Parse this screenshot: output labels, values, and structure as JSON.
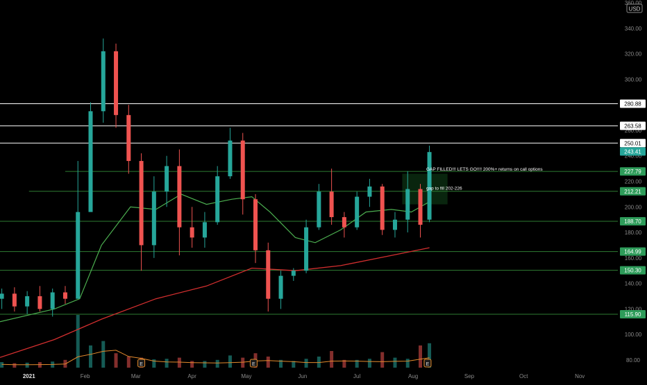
{
  "currency": "USD",
  "colors": {
    "background": "#000000",
    "up": "#26a69a",
    "down": "#ef5350",
    "level_line_green": "#2e7d32",
    "level_line_white": "#ffffff",
    "label_green": "#2e9c5a",
    "label_white": "#ffffff",
    "ma_short": "#4caf50",
    "ma_long": "#d32f2f",
    "volume_ma": "#e38a2c",
    "axis_text": "#8a8a8a",
    "gap_zone": "#0f3d17"
  },
  "annotations": [
    {
      "text": "GAP FILLED!!! LETS GO!!!! 200%+ returns on call options",
      "date": "2021-08-09",
      "price": 230
    },
    {
      "text": "gap to fill 202-226",
      "date": "2021-08-09",
      "price": 215
    }
  ],
  "chart_data": {
    "type": "candlestick",
    "y_axis": {
      "ticks": [
        80,
        100,
        120,
        140,
        160,
        180,
        200,
        220,
        240,
        260,
        280,
        300,
        320,
        340,
        360
      ],
      "labels": [
        "80.00",
        "100.00",
        "120.00",
        "140.00",
        "160.00",
        "180.00",
        "200.00",
        "220.00",
        "240.00",
        "260.00",
        "280.00",
        "300.00",
        "320.00",
        "340.00",
        "360.00"
      ],
      "range": [
        74,
        360
      ]
    },
    "x_axis": {
      "labels": [
        {
          "date": "2021-01-01",
          "text": "2021",
          "bold": true
        },
        {
          "date": "2021-02-01",
          "text": "Feb"
        },
        {
          "date": "2021-03-01",
          "text": "Mar"
        },
        {
          "date": "2021-04-01",
          "text": "Apr"
        },
        {
          "date": "2021-05-01",
          "text": "May"
        },
        {
          "date": "2021-06-01",
          "text": "Jun"
        },
        {
          "date": "2021-07-01",
          "text": "Jul"
        },
        {
          "date": "2021-08-01",
          "text": "Aug"
        },
        {
          "date": "2021-09-01",
          "text": "Sep"
        },
        {
          "date": "2021-10-01",
          "text": "Oct"
        },
        {
          "date": "2021-11-01",
          "text": "Nov"
        }
      ],
      "range": [
        "2020-12-16",
        "2021-11-22"
      ]
    },
    "levels": [
      {
        "price": 280.88,
        "label": "280.88",
        "style": "white",
        "from": "2020-12-16"
      },
      {
        "price": 263.58,
        "label": "263.58",
        "style": "white",
        "from": "2020-12-16"
      },
      {
        "price": 250.01,
        "label": "250.01",
        "style": "white",
        "from": "2020-12-16"
      },
      {
        "price": 227.79,
        "label": "227.79",
        "style": "green",
        "from": "2021-01-21"
      },
      {
        "price": 212.21,
        "label": "212.21",
        "style": "green",
        "from": "2021-01-01"
      },
      {
        "price": 188.7,
        "label": "188.70",
        "style": "green",
        "from": "2020-12-16"
      },
      {
        "price": 164.99,
        "label": "164.99",
        "style": "green",
        "from": "2020-12-16"
      },
      {
        "price": 150.3,
        "label": "150.30",
        "style": "green",
        "from": "2020-12-16"
      },
      {
        "price": 115.9,
        "label": "115.90",
        "style": "green",
        "from": "2020-12-16"
      }
    ],
    "current_price": {
      "value": 243.41,
      "label": "243.41"
    },
    "gap_zone": {
      "low": 202,
      "high": 226,
      "from": "2021-07-26",
      "to": "2021-08-20"
    },
    "candles_weekly": [
      {
        "date": "2020-12-17",
        "o": 128,
        "h": 136,
        "l": 120,
        "c": 132
      },
      {
        "date": "2020-12-24",
        "o": 132,
        "h": 137,
        "l": 118,
        "c": 122
      },
      {
        "date": "2020-12-31",
        "o": 122,
        "h": 134,
        "l": 116,
        "c": 130
      },
      {
        "date": "2021-01-07",
        "o": 130,
        "h": 138,
        "l": 118,
        "c": 120
      },
      {
        "date": "2021-01-14",
        "o": 120,
        "h": 136,
        "l": 114,
        "c": 133
      },
      {
        "date": "2021-01-21",
        "o": 133,
        "h": 138,
        "l": 124,
        "c": 128
      },
      {
        "date": "2021-01-28",
        "o": 128,
        "h": 236,
        "l": 170,
        "c": 196
      },
      {
        "date": "2021-02-04",
        "o": 196,
        "h": 282,
        "l": 240,
        "c": 275
      },
      {
        "date": "2021-02-11",
        "o": 275,
        "h": 332,
        "l": 266,
        "c": 322
      },
      {
        "date": "2021-02-18",
        "o": 322,
        "h": 328,
        "l": 262,
        "c": 272
      },
      {
        "date": "2021-02-25",
        "o": 272,
        "h": 280,
        "l": 226,
        "c": 236
      },
      {
        "date": "2021-03-04",
        "o": 236,
        "h": 242,
        "l": 150,
        "c": 170
      },
      {
        "date": "2021-03-11",
        "o": 170,
        "h": 224,
        "l": 160,
        "c": 212
      },
      {
        "date": "2021-03-18",
        "o": 212,
        "h": 240,
        "l": 200,
        "c": 232
      },
      {
        "date": "2021-03-25",
        "o": 232,
        "h": 245,
        "l": 162,
        "c": 184
      },
      {
        "date": "2021-04-01",
        "o": 184,
        "h": 200,
        "l": 168,
        "c": 176
      },
      {
        "date": "2021-04-08",
        "o": 176,
        "h": 196,
        "l": 168,
        "c": 188
      },
      {
        "date": "2021-04-15",
        "o": 188,
        "h": 232,
        "l": 186,
        "c": 224
      },
      {
        "date": "2021-04-22",
        "o": 224,
        "h": 262,
        "l": 222,
        "c": 252
      },
      {
        "date": "2021-04-29",
        "o": 252,
        "h": 258,
        "l": 194,
        "c": 206
      },
      {
        "date": "2021-05-06",
        "o": 206,
        "h": 210,
        "l": 156,
        "c": 166
      },
      {
        "date": "2021-05-13",
        "o": 166,
        "h": 172,
        "l": 118,
        "c": 128
      },
      {
        "date": "2021-05-20",
        "o": 128,
        "h": 150,
        "l": 120,
        "c": 146
      },
      {
        "date": "2021-05-27",
        "o": 146,
        "h": 152,
        "l": 142,
        "c": 150
      },
      {
        "date": "2021-06-03",
        "o": 150,
        "h": 190,
        "l": 148,
        "c": 184
      },
      {
        "date": "2021-06-10",
        "o": 184,
        "h": 218,
        "l": 182,
        "c": 212
      },
      {
        "date": "2021-06-17",
        "o": 212,
        "h": 230,
        "l": 186,
        "c": 192
      },
      {
        "date": "2021-06-24",
        "o": 192,
        "h": 196,
        "l": 176,
        "c": 184
      },
      {
        "date": "2021-07-01",
        "o": 184,
        "h": 212,
        "l": 182,
        "c": 208
      },
      {
        "date": "2021-07-08",
        "o": 208,
        "h": 222,
        "l": 200,
        "c": 216
      },
      {
        "date": "2021-07-15",
        "o": 216,
        "h": 218,
        "l": 178,
        "c": 182
      },
      {
        "date": "2021-07-22",
        "o": 182,
        "h": 196,
        "l": 176,
        "c": 190
      },
      {
        "date": "2021-07-29",
        "o": 190,
        "h": 228,
        "l": 180,
        "c": 214
      },
      {
        "date": "2021-08-05",
        "o": 214,
        "h": 218,
        "l": 176,
        "c": 186
      },
      {
        "date": "2021-08-10",
        "o": 190,
        "h": 248,
        "l": 188,
        "c": 243
      }
    ],
    "ma_short": [
      {
        "date": "2020-12-16",
        "v": 110
      },
      {
        "date": "2021-01-15",
        "v": 120
      },
      {
        "date": "2021-01-29",
        "v": 128
      },
      {
        "date": "2021-02-10",
        "v": 170
      },
      {
        "date": "2021-02-26",
        "v": 200
      },
      {
        "date": "2021-03-12",
        "v": 198
      },
      {
        "date": "2021-03-26",
        "v": 210
      },
      {
        "date": "2021-04-09",
        "v": 202
      },
      {
        "date": "2021-04-23",
        "v": 206
      },
      {
        "date": "2021-05-04",
        "v": 208
      },
      {
        "date": "2021-05-14",
        "v": 196
      },
      {
        "date": "2021-05-28",
        "v": 176
      },
      {
        "date": "2021-06-08",
        "v": 172
      },
      {
        "date": "2021-06-22",
        "v": 182
      },
      {
        "date": "2021-07-06",
        "v": 196
      },
      {
        "date": "2021-07-20",
        "v": 198
      },
      {
        "date": "2021-07-31",
        "v": 196
      },
      {
        "date": "2021-08-10",
        "v": 204
      }
    ],
    "ma_long": [
      {
        "date": "2020-12-16",
        "v": 82
      },
      {
        "date": "2021-01-15",
        "v": 96
      },
      {
        "date": "2021-02-10",
        "v": 112
      },
      {
        "date": "2021-03-12",
        "v": 128
      },
      {
        "date": "2021-04-09",
        "v": 138
      },
      {
        "date": "2021-05-04",
        "v": 152
      },
      {
        "date": "2021-05-28",
        "v": 150
      },
      {
        "date": "2021-06-22",
        "v": 154
      },
      {
        "date": "2021-07-20",
        "v": 162
      },
      {
        "date": "2021-08-10",
        "v": 168
      }
    ],
    "volume": {
      "scale_max": 100,
      "series_weekly": [
        {
          "date": "2020-12-17",
          "v": 10
        },
        {
          "date": "2020-12-24",
          "v": 8
        },
        {
          "date": "2020-12-31",
          "v": 9
        },
        {
          "date": "2021-01-07",
          "v": 10
        },
        {
          "date": "2021-01-14",
          "v": 11
        },
        {
          "date": "2021-01-21",
          "v": 14
        },
        {
          "date": "2021-01-28",
          "v": 95
        },
        {
          "date": "2021-02-04",
          "v": 40
        },
        {
          "date": "2021-02-11",
          "v": 48
        },
        {
          "date": "2021-02-18",
          "v": 26
        },
        {
          "date": "2021-02-25",
          "v": 20
        },
        {
          "date": "2021-03-04",
          "v": 18
        },
        {
          "date": "2021-03-11",
          "v": 15
        },
        {
          "date": "2021-03-18",
          "v": 16
        },
        {
          "date": "2021-03-25",
          "v": 18
        },
        {
          "date": "2021-04-01",
          "v": 12
        },
        {
          "date": "2021-04-08",
          "v": 12
        },
        {
          "date": "2021-04-15",
          "v": 14
        },
        {
          "date": "2021-04-22",
          "v": 22
        },
        {
          "date": "2021-04-29",
          "v": 18
        },
        {
          "date": "2021-05-06",
          "v": 26
        },
        {
          "date": "2021-05-13",
          "v": 20
        },
        {
          "date": "2021-05-20",
          "v": 14
        },
        {
          "date": "2021-05-27",
          "v": 12
        },
        {
          "date": "2021-06-03",
          "v": 16
        },
        {
          "date": "2021-06-10",
          "v": 20
        },
        {
          "date": "2021-06-17",
          "v": 30
        },
        {
          "date": "2021-06-24",
          "v": 14
        },
        {
          "date": "2021-07-01",
          "v": 14
        },
        {
          "date": "2021-07-08",
          "v": 16
        },
        {
          "date": "2021-07-15",
          "v": 28
        },
        {
          "date": "2021-07-22",
          "v": 18
        },
        {
          "date": "2021-07-29",
          "v": 16
        },
        {
          "date": "2021-08-05",
          "v": 40
        },
        {
          "date": "2021-08-10",
          "v": 44
        }
      ]
    },
    "earnings_markers": [
      {
        "date": "2021-03-04",
        "label": "E"
      },
      {
        "date": "2021-05-05",
        "label": "E"
      },
      {
        "date": "2021-08-09",
        "label": "E"
      }
    ]
  }
}
